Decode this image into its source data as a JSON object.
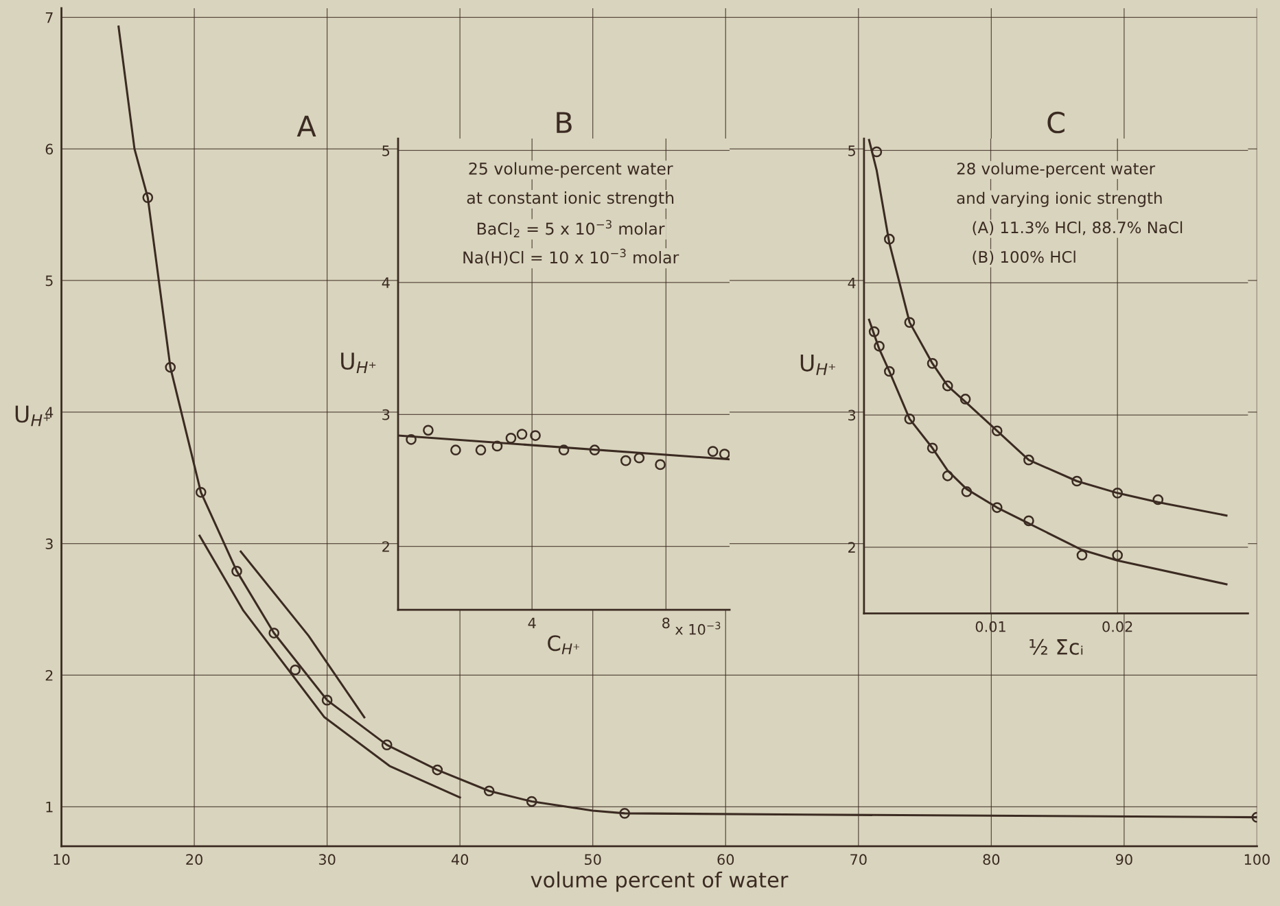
{
  "chart_data": [
    {
      "type": "line",
      "title": "A",
      "xlabel": "volume percent of water",
      "ylabel": "U$_{H⁺}$",
      "xlim": [
        10,
        100
      ],
      "ylim": [
        0.7,
        7.07
      ],
      "xticks": [
        10,
        20,
        30,
        40,
        50,
        60,
        70,
        80,
        90,
        100
      ],
      "yticks": [
        1,
        2,
        3,
        4,
        5,
        6,
        7
      ],
      "grid": true,
      "series": [
        {
          "type": "line",
          "marker": "none",
          "color": "#3b2b22",
          "x": [
            14.3,
            15.5,
            16.5,
            18.2,
            20.5,
            23.2,
            26.0,
            30.0,
            34.5,
            38.3,
            42.2,
            45.4,
            50,
            52.4,
            66,
            100
          ],
          "values": [
            6.93,
            6.0,
            5.63,
            4.34,
            3.39,
            2.79,
            2.32,
            1.81,
            1.47,
            1.28,
            1.12,
            1.04,
            0.97,
            0.95,
            0.94,
            0.92
          ]
        },
        {
          "type": "line",
          "marker": "none",
          "color": "#3b2b22",
          "x": [
            20.4,
            23.7,
            29.8,
            34.7,
            40
          ],
          "values": [
            3.06,
            2.49,
            1.68,
            1.31,
            1.07
          ]
        },
        {
          "type": "line",
          "marker": "none",
          "color": "#3b2b22",
          "x": [
            23.5,
            28.6,
            32.8
          ],
          "values": [
            2.94,
            2.3,
            1.68
          ]
        },
        {
          "type": "scatter",
          "marker": "circle",
          "color": "#3b2b22",
          "x": [
            16.5,
            18.2,
            20.5,
            23.2,
            26.0,
            27.6,
            30.0,
            34.5,
            38.3,
            42.2,
            45.4,
            52.4,
            100
          ],
          "values": [
            5.63,
            4.34,
            3.39,
            2.79,
            2.32,
            2.04,
            1.81,
            1.47,
            1.28,
            1.12,
            1.04,
            0.95,
            0.92
          ]
        }
      ]
    },
    {
      "type": "line",
      "title": "B",
      "xlabel": "C$_{H⁺}$",
      "ylabel": "U$_{H⁺}$",
      "xlim": [
        0,
        9.9
      ],
      "ylim": [
        1.52,
        5.09
      ],
      "xticks": [
        4,
        8
      ],
      "yticks": [
        2,
        3,
        4,
        5
      ],
      "grid": true,
      "annotations": [
        "x 10$^{−3}$",
        "25 volume-percent water",
        "at constant ionic strength",
        "BaCl$_{2}$ = 5 x 10$^{−3}$ molar",
        "Na(H)Cl = 10 x 10$^{−3}$ molar"
      ],
      "series": [
        {
          "type": "line",
          "marker": "none",
          "color": "#3b2b22",
          "x": [
            0,
            9.9
          ],
          "values": [
            2.84,
            2.66
          ]
        },
        {
          "type": "scatter",
          "marker": "circle",
          "color": "#3b2b22",
          "x": [
            0.39,
            0.9,
            1.72,
            2.47,
            2.96,
            3.37,
            3.7,
            4.1,
            4.95,
            5.87,
            6.8,
            7.2,
            7.83,
            9.4,
            9.75
          ],
          "values": [
            2.81,
            2.88,
            2.73,
            2.73,
            2.76,
            2.82,
            2.85,
            2.84,
            2.73,
            2.73,
            2.65,
            2.67,
            2.62,
            2.72,
            2.7
          ]
        }
      ]
    },
    {
      "type": "line",
      "title": "C",
      "xlabel": "½ Σcᵢ",
      "ylabel": "U$_{H⁺}$",
      "xlim": [
        0,
        0.0303
      ],
      "ylim": [
        1.5,
        5.09
      ],
      "xticks": [
        0.01,
        0.02
      ],
      "yticks": [
        2,
        3,
        4,
        5
      ],
      "grid": true,
      "annotations": [
        "28 volume-percent water",
        "and varying ionic strength",
        "(A) 11.3% HCl, 88.7% NaCl",
        "(B) 100% HCl"
      ],
      "series": [
        {
          "type": "line",
          "marker": "none",
          "color": "#3b2b22",
          "x": [
            0.0004,
            0.001,
            0.002,
            0.0036,
            0.0054,
            0.0066,
            0.008,
            0.0105,
            0.013,
            0.0168,
            0.02,
            0.0232,
            0.0286
          ],
          "values": [
            5.08,
            4.85,
            4.3,
            3.7,
            3.39,
            3.22,
            3.1,
            2.88,
            2.66,
            2.5,
            2.41,
            2.34,
            2.24
          ]
        },
        {
          "type": "scatter",
          "marker": "circle",
          "color": "#3b2b22",
          "x": [
            0.001,
            0.002,
            0.0036,
            0.0054,
            0.0066,
            0.008,
            0.0105,
            0.013,
            0.0168,
            0.02,
            0.0232
          ],
          "values": [
            4.99,
            4.33,
            3.7,
            3.39,
            3.22,
            3.12,
            2.88,
            2.66,
            2.5,
            2.41,
            2.36
          ]
        },
        {
          "type": "line",
          "marker": "none",
          "color": "#3b2b22",
          "x": [
            0.0004,
            0.0012,
            0.002,
            0.0036,
            0.0054,
            0.0066,
            0.0081,
            0.0105,
            0.013,
            0.0172,
            0.02,
            0.0286
          ],
          "values": [
            3.72,
            3.5,
            3.33,
            2.97,
            2.75,
            2.58,
            2.44,
            2.3,
            2.18,
            1.98,
            1.9,
            1.72
          ]
        },
        {
          "type": "scatter",
          "marker": "circle",
          "color": "#3b2b22",
          "x": [
            0.0008,
            0.0012,
            0.002,
            0.0036,
            0.0054,
            0.0066,
            0.0081,
            0.0105,
            0.013,
            0.0172,
            0.02
          ],
          "values": [
            3.63,
            3.52,
            3.33,
            2.97,
            2.75,
            2.54,
            2.42,
            2.3,
            2.2,
            1.94,
            1.94
          ]
        }
      ]
    }
  ]
}
